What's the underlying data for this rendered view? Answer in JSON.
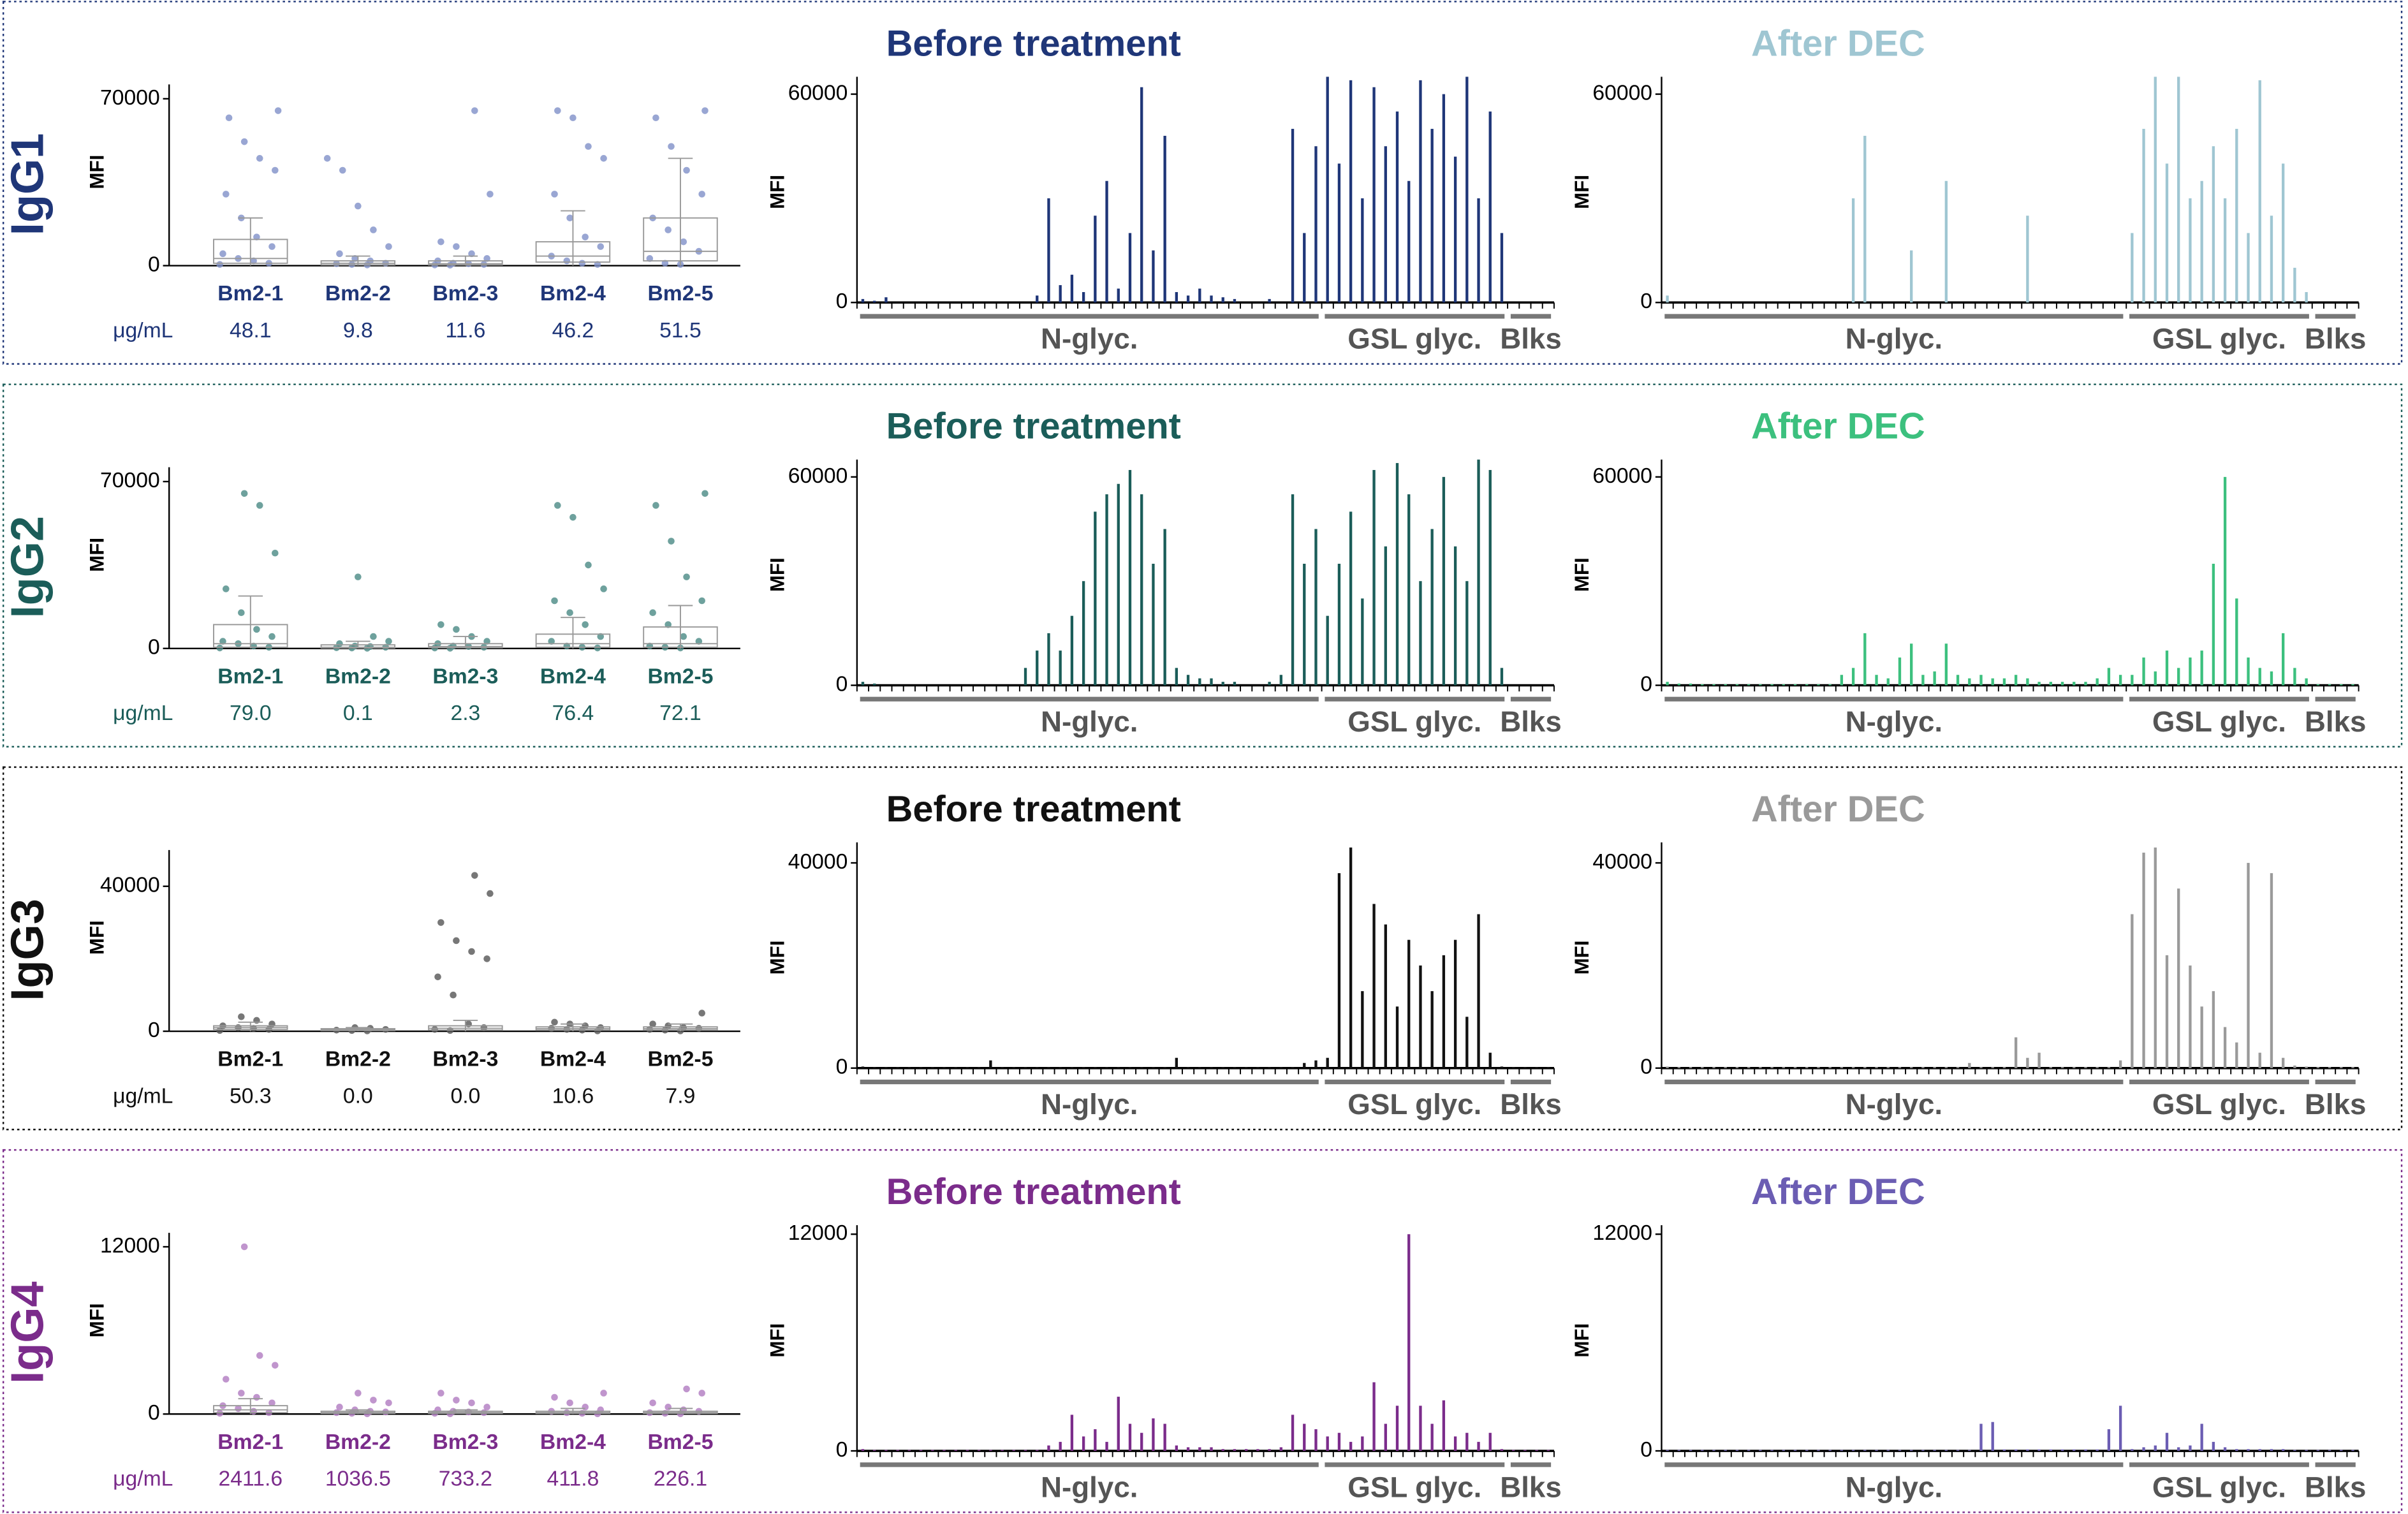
{
  "chart_data": [
    {
      "type": "strip",
      "panel_label": "IgG1",
      "ylabel": "MFI",
      "color": "#8090c8",
      "label_color": "#1f3678",
      "ylim": [
        0,
        76000
      ],
      "yticks": [
        0,
        70000
      ],
      "categories": [
        "Bm2-1",
        "Bm2-2",
        "Bm2-3",
        "Bm2-4",
        "Bm2-5"
      ],
      "points": [
        [
          500,
          1000,
          2000,
          3000,
          5000,
          8000,
          12000,
          20000,
          30000,
          40000,
          45000,
          52000,
          62000,
          65000
        ],
        [
          300,
          500,
          800,
          1000,
          2000,
          3000,
          5000,
          8000,
          15000,
          25000,
          40000,
          45000
        ],
        [
          200,
          300,
          500,
          800,
          1000,
          2000,
          3000,
          5000,
          8000,
          10000,
          30000,
          65000
        ],
        [
          500,
          1000,
          2000,
          4000,
          8000,
          12000,
          20000,
          30000,
          45000,
          50000,
          62000,
          65000
        ],
        [
          500,
          1000,
          3000,
          6000,
          10000,
          15000,
          20000,
          30000,
          40000,
          50000,
          62000,
          65000
        ]
      ],
      "boxes": [
        [
          0,
          1000,
          3000,
          11000,
          20000
        ],
        [
          0,
          300,
          1000,
          2000,
          4000
        ],
        [
          0,
          300,
          800,
          2000,
          4000
        ],
        [
          0,
          1500,
          4000,
          10000,
          23000
        ],
        [
          0,
          2000,
          6000,
          20000,
          45000
        ]
      ],
      "unit_label": "μg/mL",
      "concentrations": [
        "48.1",
        "9.8",
        "11.6",
        "46.2",
        "51.5"
      ]
    },
    {
      "type": "bar",
      "title": "Before treatment",
      "ylabel": "MFI",
      "color": "#1f3678",
      "ylim": [
        0,
        65000
      ],
      "yticks": [
        0,
        60000
      ],
      "groups": [
        {
          "label": "N-glyc.",
          "count": 40
        },
        {
          "label": "GSL glyc.",
          "count": 16
        },
        {
          "label": "Blks",
          "count": 4
        }
      ],
      "values": [
        1000,
        500,
        1500,
        0,
        0,
        0,
        0,
        0,
        0,
        0,
        0,
        0,
        0,
        0,
        0,
        2000,
        30000,
        5000,
        8000,
        3000,
        25000,
        35000,
        4000,
        20000,
        62000,
        15000,
        48000,
        3000,
        2000,
        4000,
        2000,
        1500,
        1000,
        0,
        0,
        1000,
        0,
        50000,
        20000,
        45000,
        65000,
        40000,
        64000,
        30000,
        62000,
        45000,
        55000,
        35000,
        64000,
        50000,
        60000,
        42000,
        65000,
        30000,
        55000,
        20000,
        0,
        0,
        0,
        0
      ]
    },
    {
      "type": "bar",
      "title": "After DEC",
      "ylabel": "MFI",
      "color": "#9fc6d2",
      "ylim": [
        0,
        65000
      ],
      "yticks": [
        0,
        60000
      ],
      "groups": [
        {
          "label": "N-glyc.",
          "count": 40
        },
        {
          "label": "GSL glyc.",
          "count": 16
        },
        {
          "label": "Blks",
          "count": 4
        }
      ],
      "values": [
        2000,
        0,
        0,
        0,
        0,
        0,
        0,
        0,
        0,
        0,
        0,
        0,
        0,
        0,
        0,
        0,
        30000,
        48000,
        0,
        0,
        0,
        15000,
        0,
        0,
        35000,
        0,
        0,
        0,
        0,
        0,
        0,
        25000,
        0,
        0,
        0,
        0,
        0,
        0,
        0,
        0,
        20000,
        50000,
        65000,
        40000,
        65000,
        30000,
        35000,
        45000,
        30000,
        50000,
        20000,
        64000,
        25000,
        40000,
        10000,
        3000,
        0,
        0,
        0,
        0
      ]
    },
    {
      "type": "strip",
      "panel_label": "IgG2",
      "ylabel": "MFI",
      "color": "#4a8a84",
      "label_color": "#1b5d59",
      "ylim": [
        0,
        76000
      ],
      "yticks": [
        0,
        70000
      ],
      "categories": [
        "Bm2-1",
        "Bm2-2",
        "Bm2-3",
        "Bm2-4",
        "Bm2-5"
      ],
      "points": [
        [
          200,
          500,
          1000,
          2000,
          3000,
          5000,
          8000,
          15000,
          25000,
          40000,
          60000,
          65000
        ],
        [
          100,
          200,
          300,
          500,
          800,
          1000,
          2000,
          3000,
          5000,
          30000
        ],
        [
          100,
          200,
          500,
          800,
          1000,
          2000,
          3000,
          5000,
          8000,
          10000
        ],
        [
          200,
          500,
          1000,
          3000,
          5000,
          10000,
          15000,
          20000,
          25000,
          35000,
          55000,
          60000
        ],
        [
          200,
          500,
          1000,
          3000,
          5000,
          10000,
          15000,
          20000,
          30000,
          45000,
          60000,
          65000
        ]
      ],
      "boxes": [
        [
          0,
          500,
          2000,
          10000,
          22000
        ],
        [
          0,
          200,
          500,
          1500,
          3000
        ],
        [
          0,
          300,
          800,
          2000,
          5000
        ],
        [
          0,
          500,
          2000,
          6000,
          13000
        ],
        [
          0,
          500,
          2000,
          9000,
          18000
        ]
      ],
      "unit_label": "μg/mL",
      "concentrations": [
        "79.0",
        "0.1",
        "2.3",
        "76.4",
        "72.1"
      ]
    },
    {
      "type": "bar",
      "title": "Before treatment",
      "ylabel": "MFI",
      "color": "#1b5d59",
      "ylim": [
        0,
        65000
      ],
      "yticks": [
        0,
        60000
      ],
      "groups": [
        {
          "label": "N-glyc.",
          "count": 40
        },
        {
          "label": "GSL glyc.",
          "count": 16
        },
        {
          "label": "Blks",
          "count": 4
        }
      ],
      "values": [
        1000,
        500,
        0,
        0,
        0,
        0,
        0,
        0,
        0,
        0,
        0,
        0,
        0,
        0,
        5000,
        10000,
        15000,
        10000,
        20000,
        30000,
        50000,
        55000,
        58000,
        62000,
        55000,
        35000,
        45000,
        5000,
        3000,
        2000,
        2000,
        1000,
        1000,
        0,
        0,
        1000,
        3000,
        55000,
        35000,
        45000,
        20000,
        35000,
        50000,
        25000,
        62000,
        40000,
        64000,
        55000,
        30000,
        45000,
        60000,
        40000,
        30000,
        65000,
        62000,
        5000,
        0,
        0,
        0,
        0
      ]
    },
    {
      "type": "bar",
      "title": "After DEC",
      "ylabel": "MFI",
      "color": "#3cc07e",
      "ylim": [
        0,
        65000
      ],
      "yticks": [
        0,
        60000
      ],
      "groups": [
        {
          "label": "N-glyc.",
          "count": 40
        },
        {
          "label": "GSL glyc.",
          "count": 16
        },
        {
          "label": "Blks",
          "count": 4
        }
      ],
      "values": [
        1000,
        500,
        500,
        300,
        300,
        300,
        300,
        300,
        300,
        300,
        300,
        300,
        300,
        300,
        300,
        3000,
        5000,
        15000,
        3000,
        2000,
        8000,
        12000,
        3000,
        4000,
        12000,
        3000,
        2000,
        3000,
        2000,
        2000,
        3000,
        2000,
        1000,
        1000,
        1000,
        1000,
        1000,
        2000,
        5000,
        3000,
        3000,
        8000,
        4000,
        10000,
        5000,
        8000,
        10000,
        35000,
        60000,
        25000,
        8000,
        5000,
        4000,
        15000,
        5000,
        2000,
        300,
        300,
        300,
        300
      ]
    },
    {
      "type": "strip",
      "panel_label": "IgG3",
      "ylabel": "MFI",
      "color": "#555555",
      "label_color": "#111111",
      "ylim": [
        0,
        50000
      ],
      "yticks": [
        0,
        40000
      ],
      "categories": [
        "Bm2-1",
        "Bm2-2",
        "Bm2-3",
        "Bm2-4",
        "Bm2-5"
      ],
      "points": [
        [
          200,
          500,
          800,
          1000,
          1500,
          2000,
          3000,
          4000
        ],
        [
          100,
          200,
          300,
          500,
          800,
          1000
        ],
        [
          200,
          500,
          1000,
          2000,
          10000,
          15000,
          20000,
          22000,
          25000,
          30000,
          38000,
          43000
        ],
        [
          100,
          300,
          500,
          800,
          1000,
          1500,
          2000,
          2500
        ],
        [
          100,
          300,
          500,
          800,
          1000,
          1500,
          2000,
          5000
        ]
      ],
      "boxes": [
        [
          0,
          500,
          1000,
          1500,
          2500
        ],
        [
          0,
          200,
          400,
          700,
          1000
        ],
        [
          0,
          300,
          800,
          1500,
          3000
        ],
        [
          0,
          300,
          700,
          1200,
          2000
        ],
        [
          0,
          300,
          700,
          1200,
          2000
        ]
      ],
      "unit_label": "μg/mL",
      "concentrations": [
        "50.3",
        "0.0",
        "0.0",
        "10.6",
        "7.9"
      ]
    },
    {
      "type": "bar",
      "title": "Before treatment",
      "ylabel": "MFI",
      "color": "#111111",
      "ylim": [
        0,
        44000
      ],
      "yticks": [
        0,
        40000
      ],
      "groups": [
        {
          "label": "N-glyc.",
          "count": 40
        },
        {
          "label": "GSL glyc.",
          "count": 16
        },
        {
          "label": "Blks",
          "count": 4
        }
      ],
      "values": [
        300,
        200,
        200,
        200,
        200,
        200,
        200,
        200,
        200,
        200,
        200,
        1500,
        200,
        200,
        200,
        200,
        200,
        200,
        200,
        200,
        200,
        200,
        200,
        200,
        200,
        200,
        200,
        2000,
        200,
        200,
        200,
        200,
        200,
        200,
        200,
        200,
        200,
        200,
        1000,
        1500,
        2000,
        38000,
        43000,
        15000,
        32000,
        28000,
        12000,
        25000,
        20000,
        15000,
        22000,
        25000,
        10000,
        30000,
        3000,
        300,
        200,
        200,
        200,
        200
      ]
    },
    {
      "type": "bar",
      "title": "After DEC",
      "ylabel": "MFI",
      "color": "#9a9a9a",
      "ylim": [
        0,
        44000
      ],
      "yticks": [
        0,
        40000
      ],
      "groups": [
        {
          "label": "N-glyc.",
          "count": 40
        },
        {
          "label": "GSL glyc.",
          "count": 16
        },
        {
          "label": "Blks",
          "count": 4
        }
      ],
      "values": [
        300,
        200,
        200,
        200,
        200,
        200,
        200,
        200,
        200,
        200,
        200,
        200,
        200,
        200,
        200,
        200,
        200,
        200,
        200,
        200,
        200,
        200,
        200,
        200,
        200,
        200,
        1000,
        200,
        200,
        200,
        6000,
        2000,
        3000,
        200,
        200,
        200,
        200,
        200,
        200,
        1500,
        30000,
        42000,
        43000,
        22000,
        35000,
        20000,
        12000,
        15000,
        8000,
        5000,
        40000,
        3000,
        38000,
        2000,
        500,
        300,
        200,
        200,
        200,
        200
      ]
    },
    {
      "type": "strip",
      "panel_label": "IgG4",
      "ylabel": "MFI",
      "color": "#b07ac0",
      "label_color": "#7b2c8b",
      "ylim": [
        0,
        13000
      ],
      "yticks": [
        0,
        12000
      ],
      "categories": [
        "Bm2-1",
        "Bm2-2",
        "Bm2-3",
        "Bm2-4",
        "Bm2-5"
      ],
      "points": [
        [
          50,
          100,
          200,
          400,
          600,
          800,
          1200,
          1500,
          2500,
          3500,
          4200,
          12000
        ],
        [
          20,
          50,
          100,
          150,
          200,
          300,
          500,
          800,
          1000,
          1500
        ],
        [
          20,
          50,
          100,
          150,
          200,
          300,
          500,
          800,
          1000,
          1500
        ],
        [
          20,
          50,
          100,
          200,
          300,
          500,
          800,
          1200,
          1500
        ],
        [
          20,
          50,
          100,
          200,
          300,
          500,
          800,
          1500,
          1800
        ]
      ],
      "boxes": [
        [
          0,
          100,
          300,
          600,
          1100
        ],
        [
          0,
          50,
          100,
          200,
          300
        ],
        [
          0,
          50,
          100,
          200,
          300
        ],
        [
          0,
          50,
          100,
          200,
          400
        ],
        [
          0,
          50,
          100,
          200,
          400
        ]
      ],
      "unit_label": "μg/mL",
      "concentrations": [
        "2411.6",
        "1036.5",
        "733.2",
        "411.8",
        "226.1"
      ]
    },
    {
      "type": "bar",
      "title": "Before treatment",
      "ylabel": "MFI",
      "color": "#7b2c8b",
      "ylim": [
        0,
        12500
      ],
      "yticks": [
        0,
        12000
      ],
      "groups": [
        {
          "label": "N-glyc.",
          "count": 40
        },
        {
          "label": "GSL glyc.",
          "count": 16
        },
        {
          "label": "Blks",
          "count": 4
        }
      ],
      "values": [
        100,
        50,
        50,
        50,
        50,
        50,
        50,
        50,
        50,
        50,
        50,
        50,
        50,
        50,
        50,
        50,
        300,
        500,
        2000,
        800,
        1200,
        500,
        3000,
        1500,
        1000,
        1800,
        1500,
        300,
        200,
        200,
        200,
        100,
        100,
        100,
        100,
        100,
        200,
        2000,
        1500,
        1200,
        800,
        1000,
        500,
        800,
        3800,
        1500,
        2500,
        12000,
        2500,
        1500,
        2800,
        800,
        1000,
        500,
        1000,
        100,
        50,
        50,
        50,
        50
      ]
    },
    {
      "type": "bar",
      "title": "After DEC",
      "ylabel": "MFI",
      "color": "#6b5db3",
      "ylim": [
        0,
        12500
      ],
      "yticks": [
        0,
        12000
      ],
      "groups": [
        {
          "label": "N-glyc.",
          "count": 40
        },
        {
          "label": "GSL glyc.",
          "count": 16
        },
        {
          "label": "Blks",
          "count": 4
        }
      ],
      "values": [
        50,
        50,
        50,
        50,
        50,
        50,
        50,
        50,
        50,
        50,
        50,
        50,
        50,
        50,
        50,
        50,
        50,
        50,
        50,
        50,
        50,
        50,
        50,
        50,
        50,
        50,
        50,
        1500,
        1600,
        80,
        80,
        80,
        80,
        80,
        80,
        80,
        80,
        80,
        1200,
        2500,
        100,
        200,
        300,
        1000,
        200,
        300,
        1500,
        500,
        200,
        100,
        100,
        100,
        100,
        100,
        50,
        50,
        50,
        50,
        50,
        50
      ]
    }
  ]
}
